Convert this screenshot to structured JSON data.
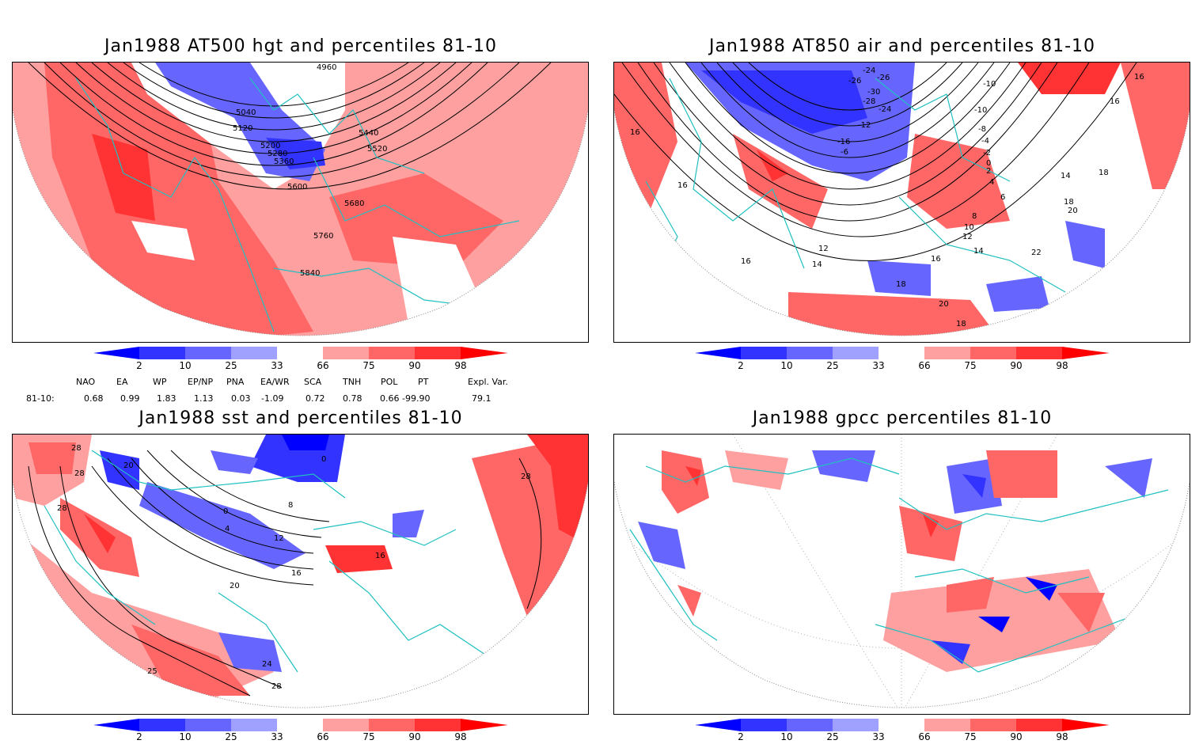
{
  "panels": [
    {
      "title": "Jan1988 AT500 hgt and percentiles 81-10",
      "contour_labels": [
        "4960",
        "5040",
        "5120",
        "5200",
        "5280",
        "5360",
        "5440",
        "5520",
        "5600",
        "5680",
        "5760",
        "5840"
      ]
    },
    {
      "title": "Jan1988 AT850 air and percentiles 81-10",
      "contour_labels": [
        "-26",
        "-24",
        "-26",
        "-30",
        "-28",
        "-24",
        "-12",
        "-10",
        "-16",
        "-6",
        "-10",
        "-8",
        "-4",
        "-2",
        "0",
        "2",
        "4",
        "6",
        "8",
        "10",
        "12",
        "14",
        "16",
        "16",
        "16",
        "14",
        "18",
        "16",
        "18",
        "20",
        "22",
        "18",
        "20",
        "18",
        "12",
        "14",
        "16",
        "16"
      ]
    },
    {
      "title": "Jan1988 sst and percentiles 81-10",
      "contour_labels": [
        "28",
        "28",
        "20",
        "28",
        "0",
        "4",
        "8",
        "12",
        "16",
        "20",
        "16",
        "24",
        "28",
        "25",
        "0"
      ]
    },
    {
      "title": "Jan1988 gpcc percentiles 81-10",
      "contour_labels": []
    }
  ],
  "colorbar": {
    "ticks": [
      "2",
      "10",
      "25",
      "33",
      "66",
      "75",
      "90",
      "98"
    ],
    "colors": [
      "#0000ff",
      "#3333ff",
      "#6666ff",
      "#a0a0ff",
      "#ffffff",
      "#ffa0a0",
      "#ff6666",
      "#ff3333",
      "#ff0000"
    ]
  },
  "indices": {
    "headers": [
      "NAO",
      "EA",
      "WP",
      "EP/NP",
      "PNA",
      "EA/WR",
      "SCA",
      "TNH",
      "POL",
      "PT",
      "Expl. Var."
    ],
    "row_label": "81-10:",
    "values": [
      "0.68",
      "0.99",
      "1.83",
      "1.13",
      "0.03",
      "-1.09",
      "0.72",
      "0.78",
      "0.66",
      "-99.90",
      "79.1"
    ]
  },
  "colors": {
    "coast": "#20c0c0",
    "warm": "#ff6666",
    "cold": "#6666ff",
    "frame": "#000000"
  }
}
